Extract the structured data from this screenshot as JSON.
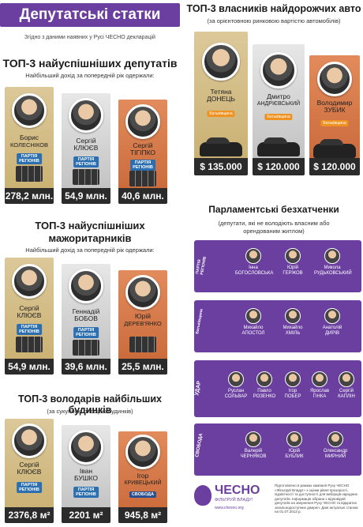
{
  "title": "Депутатські статки",
  "note": "Згідно з даними наявних у Русі ЧЕСНО декларацій",
  "income": {
    "title": "ТОП-3 найуспішніших депутатів",
    "subtitle": "Найбільший дохід за попередній рік одержали:",
    "people": [
      {
        "name1": "Борис",
        "name2": "КОЛЕСНІКОВ",
        "value": "278,2 млн."
      },
      {
        "name1": "Сергій",
        "name2": "КЛЮЄВ",
        "value": "54,9 млн."
      },
      {
        "name1": "Сергій",
        "name2": "ТІГІПКО",
        "value": "40,6 млн."
      }
    ],
    "party": "ПАРТІЯ РЕГІОНІВ"
  },
  "major": {
    "title1": "ТОП-3 найуспішніших",
    "title2": "мажоритарників",
    "subtitle": "Найбільший дохід за попередній рік одержали:",
    "people": [
      {
        "name1": "Сергій",
        "name2": "КЛЮЄВ",
        "value": "54,9 млн."
      },
      {
        "name1": "Геннадій",
        "name2": "БОБОВ",
        "value": "39,6 млн."
      },
      {
        "name1": "Юрій",
        "name2": "ДЕРЕВ'ЯНКО",
        "value": "25,5 млн."
      }
    ]
  },
  "houses": {
    "title": "ТОП-3 володарів найбільших будинків",
    "subtitle": "(за сукупною площею будинків)",
    "people": [
      {
        "name1": "Сергій",
        "name2": "КЛЮЄВ",
        "value": "2376,8 м²"
      },
      {
        "name1": "Іван",
        "name2": "БУШКО",
        "value": "2201 м²"
      },
      {
        "name1": "Ігор",
        "name2": "КРИВЕЦЬКИЙ",
        "value": "945,8 м²"
      }
    ],
    "svoboda": "СВОБОДА"
  },
  "cars": {
    "title": "ТОП-3 власників найдорожчих авто",
    "subtitle": "(за орієнтовною ринковою вартістю автомобілів)",
    "people": [
      {
        "name1": "Тетяна",
        "name2": "ДОНЕЦЬ",
        "value": "$ 135.000"
      },
      {
        "name1": "Дмитро",
        "name2": "АНДРІЄВСЬКИЙ",
        "value": "$ 120.000"
      },
      {
        "name1": "Володимир",
        "name2": "ЗУБИК",
        "value": "$ 120.000"
      }
    ],
    "party": "Батьківщина"
  },
  "homeless": {
    "title": "Парламентські безхатченки",
    "subtitle1": "(депутати, які не володіють власним або",
    "subtitle2": "орендованим житлом)",
    "rows": [
      {
        "party": "ПАРТІЯ РЕГІОНІВ",
        "mps": [
          {
            "n1": "Інна",
            "n2": "БОГОСЛОВСЬКА"
          },
          {
            "n1": "Юрій",
            "n2": "ГЕРЖОВ"
          },
          {
            "n1": "Микола",
            "n2": "РУДЬКОВСЬКИЙ"
          }
        ]
      },
      {
        "party": "Батьківщина",
        "mps": [
          {
            "n1": "Михайло",
            "n2": "АПОСТОЛ"
          },
          {
            "n1": "Михайло",
            "n2": "ХМІЛЬ"
          },
          {
            "n1": "Анатолій",
            "n2": "ДИРІВ"
          }
        ]
      },
      {
        "party": "УДАР",
        "mps": [
          {
            "n1": "Руслан",
            "n2": "СОЛЬВАР"
          },
          {
            "n1": "Павло",
            "n2": "РОЗЕНКО"
          },
          {
            "n1": "Ігор",
            "n2": "ПОБЕР"
          },
          {
            "n1": "Ярослав",
            "n2": "ГІНКА"
          },
          {
            "n1": "Сергій",
            "n2": "КАПЛІН"
          }
        ]
      },
      {
        "party": "СВОБОДА",
        "mps": [
          {
            "n1": "Валерій",
            "n2": "ЧЕРНЯКОВ"
          },
          {
            "n1": "Юрій",
            "n2": "БУБЛИК"
          },
          {
            "n1": "Олександр",
            "n2": "МИРНИЙ"
          }
        ]
      }
    ]
  },
  "footer": {
    "brand": "ЧЕСНО",
    "brand_sub": "ФІЛЬТРУЙ ВЛАДУ!",
    "site": "www.chesno.org",
    "note": "Підготовлено в рамках кампанії Руху ЧЕСНО «Фільтруй Владу!» з оцінки рівня прозорості, підзвітності та доступності для виборців народних депутатів. Інформація зібрана з відповідей депутатів на звернення Руху ЧЕСНО та відкритих загальнодоступних джерел. Дані актуальні станом на 01.07.2013 р."
  }
}
